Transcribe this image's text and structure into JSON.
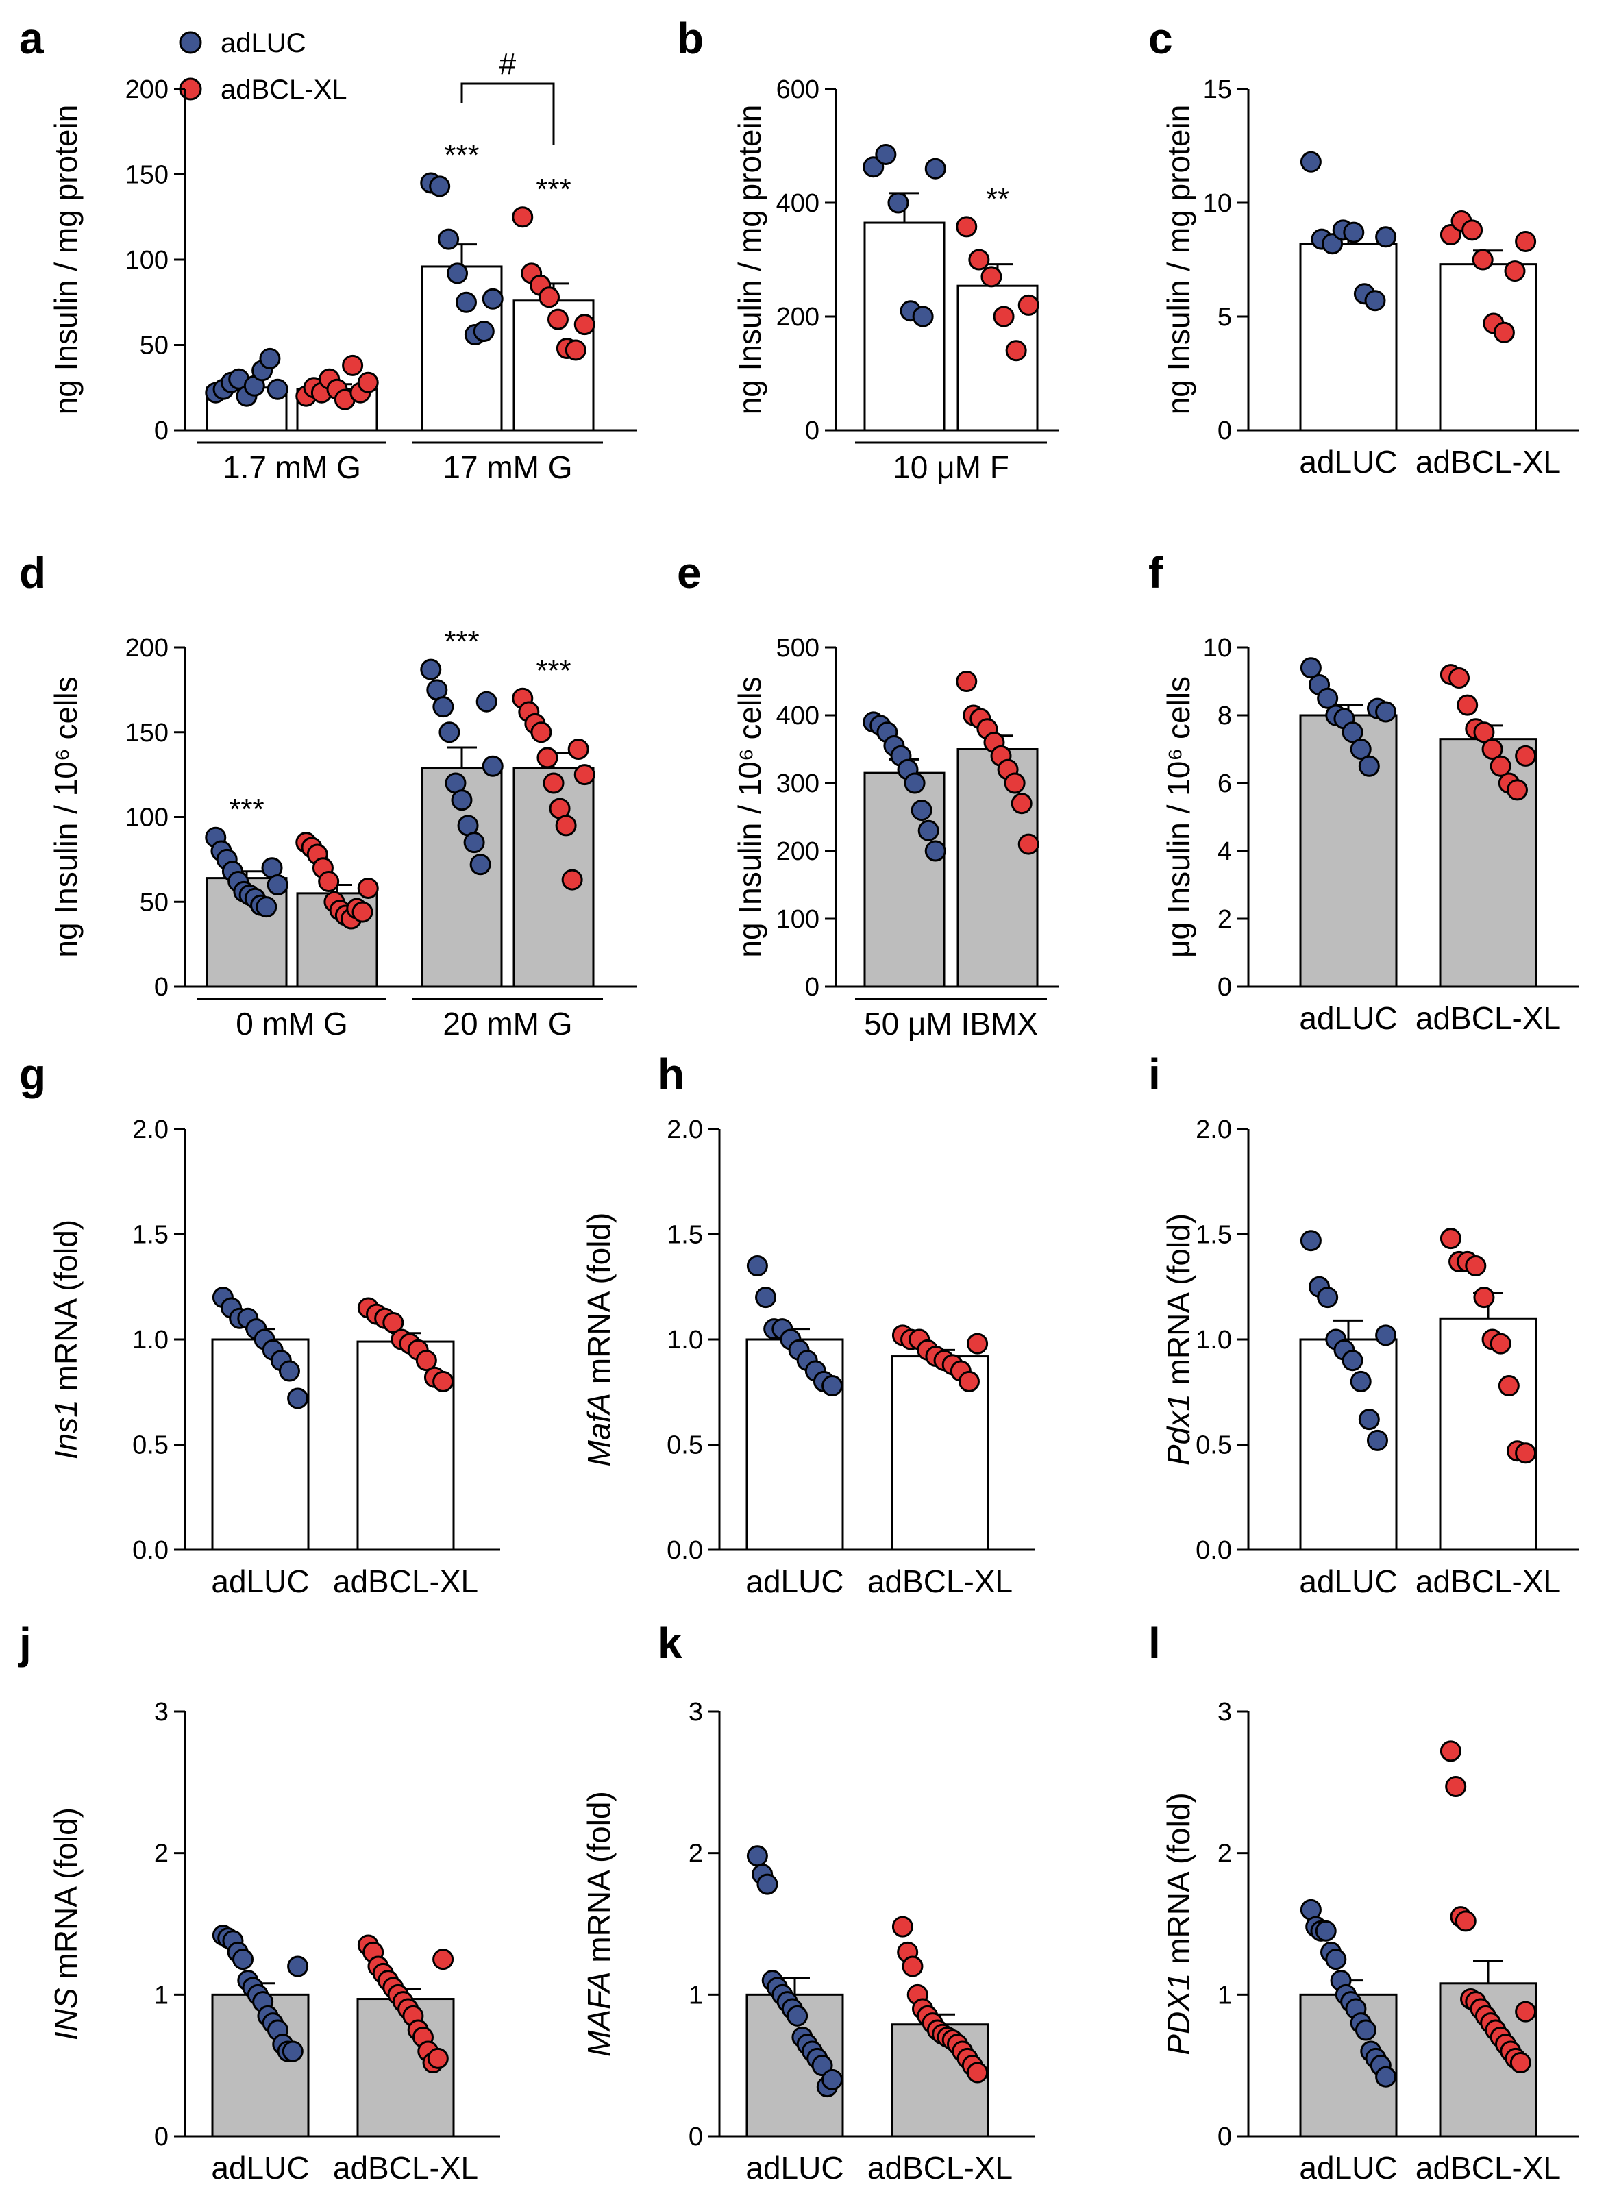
{
  "colors": {
    "adLUC": "#3f5590",
    "adBCL": "#e53a3a",
    "bar_white": "#ffffff",
    "bar_grey": "#bdbdbd"
  },
  "legend": [
    {
      "label": "adLUC",
      "color": "#3f5590"
    },
    {
      "label": "adBCL-XL",
      "color": "#e53a3a"
    }
  ],
  "chart_data": [
    {
      "id": "a",
      "panel_label": "a",
      "type": "bar",
      "bar_fill": "white",
      "ylabel": "ng Insulin / mg protein",
      "ylim": [
        0,
        200
      ],
      "yticks": [
        "0",
        "50",
        "100",
        "150",
        "200"
      ],
      "groups": [
        {
          "label": "1.7 mM G",
          "bars": [
            0,
            1
          ]
        },
        {
          "label": "17 mM G",
          "bars": [
            2,
            3
          ]
        }
      ],
      "bars": [
        {
          "series": "adLUC",
          "mean": 25,
          "sem": 3,
          "points": [
            22,
            24,
            28,
            30,
            20,
            26,
            35,
            42,
            24
          ],
          "sig": ""
        },
        {
          "series": "adBCL-XL",
          "mean": 24,
          "sem": 3,
          "points": [
            20,
            25,
            22,
            30,
            24,
            18,
            38,
            22,
            28
          ],
          "sig": ""
        },
        {
          "series": "adLUC",
          "mean": 96,
          "sem": 13,
          "points": [
            145,
            143,
            112,
            92,
            75,
            56,
            58,
            77
          ],
          "sig": "***"
        },
        {
          "series": "adBCL-XL",
          "mean": 76,
          "sem": 10,
          "points": [
            125,
            92,
            85,
            78,
            65,
            48,
            47,
            62
          ],
          "sig": "***"
        }
      ],
      "bracket": {
        "from": 2,
        "to": 3,
        "label": "#"
      }
    },
    {
      "id": "b",
      "panel_label": "b",
      "type": "bar",
      "bar_fill": "white",
      "ylabel": "ng Insulin / mg protein",
      "ylim": [
        0,
        600
      ],
      "yticks": [
        "0",
        "200",
        "400",
        "600"
      ],
      "groups": [
        {
          "label": "10 μM F",
          "bars": [
            0,
            1
          ]
        }
      ],
      "bars": [
        {
          "series": "adLUC",
          "mean": 365,
          "sem": 52,
          "points": [
            463,
            485,
            400,
            210,
            200,
            460
          ],
          "sig": ""
        },
        {
          "series": "adBCL-XL",
          "mean": 254,
          "sem": 38,
          "points": [
            358,
            300,
            270,
            200,
            140,
            220
          ],
          "sig": "**"
        }
      ]
    },
    {
      "id": "c",
      "panel_label": "c",
      "type": "bar",
      "bar_fill": "white",
      "ylabel": "ng Insulin / mg protein",
      "ylim": [
        0,
        15
      ],
      "yticks": [
        "0",
        "5",
        "10",
        "15"
      ],
      "categories": [
        "adLUC",
        "adBCL-XL"
      ],
      "bars": [
        {
          "series": "adLUC",
          "mean": 8.2,
          "sem": 0.6,
          "points": [
            11.8,
            8.4,
            8.2,
            8.8,
            8.7,
            6.0,
            5.7,
            8.5
          ],
          "sig": ""
        },
        {
          "series": "adBCL-XL",
          "mean": 7.3,
          "sem": 0.6,
          "points": [
            8.6,
            9.2,
            8.8,
            7.5,
            4.7,
            4.3,
            7.0,
            8.3
          ],
          "sig": ""
        }
      ]
    },
    {
      "id": "d",
      "panel_label": "d",
      "type": "bar",
      "bar_fill": "grey",
      "ylabel": "ng Insulin / 10⁶ cells",
      "ylim": [
        0,
        200
      ],
      "yticks": [
        "0",
        "50",
        "100",
        "150",
        "200"
      ],
      "groups": [
        {
          "label": "0 mM G",
          "bars": [
            0,
            1
          ]
        },
        {
          "label": "20 mM G",
          "bars": [
            2,
            3
          ]
        }
      ],
      "bars": [
        {
          "series": "adLUC",
          "mean": 64,
          "sem": 4,
          "points": [
            88,
            80,
            75,
            68,
            62,
            56,
            54,
            52,
            48,
            47,
            70,
            60
          ],
          "sig": "***"
        },
        {
          "series": "adBCL-XL",
          "mean": 55,
          "sem": 5,
          "points": [
            85,
            82,
            78,
            70,
            62,
            50,
            45,
            42,
            40,
            46,
            44,
            58
          ],
          "sig": ""
        },
        {
          "series": "adLUC",
          "mean": 129,
          "sem": 12,
          "points": [
            187,
            175,
            165,
            150,
            120,
            110,
            95,
            85,
            72,
            168,
            130
          ],
          "sig": "***"
        },
        {
          "series": "adBCL-XL",
          "mean": 129,
          "sem": 9,
          "points": [
            170,
            162,
            155,
            150,
            135,
            120,
            105,
            95,
            63,
            140,
            125
          ],
          "sig": "***"
        }
      ]
    },
    {
      "id": "e",
      "panel_label": "e",
      "type": "bar",
      "bar_fill": "grey",
      "ylabel": "ng Insulin / 10⁶ cells",
      "ylim": [
        0,
        500
      ],
      "yticks": [
        "0",
        "100",
        "200",
        "300",
        "400",
        "500"
      ],
      "groups": [
        {
          "label": "50 μM IBMX",
          "bars": [
            0,
            1
          ]
        }
      ],
      "bars": [
        {
          "series": "adLUC",
          "mean": 315,
          "sem": 20,
          "points": [
            390,
            385,
            375,
            355,
            340,
            320,
            300,
            260,
            230,
            200
          ],
          "sig": ""
        },
        {
          "series": "adBCL-XL",
          "mean": 350,
          "sem": 20,
          "points": [
            450,
            400,
            395,
            380,
            360,
            340,
            320,
            300,
            270,
            210
          ],
          "sig": ""
        }
      ]
    },
    {
      "id": "f",
      "panel_label": "f",
      "type": "bar",
      "bar_fill": "grey",
      "ylabel": "μg Insulin / 10⁶ cells",
      "ylim": [
        0,
        10
      ],
      "yticks": [
        "0",
        "2",
        "4",
        "6",
        "8",
        "10"
      ],
      "categories": [
        "adLUC",
        "adBCL-XL"
      ],
      "bars": [
        {
          "series": "adLUC",
          "mean": 8.0,
          "sem": 0.3,
          "points": [
            9.4,
            8.9,
            8.5,
            8.0,
            7.9,
            7.5,
            7.0,
            6.5,
            8.2,
            8.1
          ],
          "sig": ""
        },
        {
          "series": "adBCL-XL",
          "mean": 7.3,
          "sem": 0.4,
          "points": [
            9.2,
            9.1,
            8.3,
            7.6,
            7.5,
            7.0,
            6.5,
            6.0,
            5.8,
            6.8
          ],
          "sig": ""
        }
      ]
    },
    {
      "id": "g",
      "panel_label": "g",
      "type": "bar",
      "bar_fill": "white",
      "ylabel_italic": "Ins1",
      "ylabel_rest": " mRNA (fold)",
      "ylim": [
        0,
        2
      ],
      "yticks": [
        "0.0",
        "0.5",
        "1.0",
        "1.5",
        "2.0"
      ],
      "categories": [
        "adLUC",
        "adBCL-XL"
      ],
      "bars": [
        {
          "series": "adLUC",
          "mean": 1.0,
          "sem": 0.05,
          "points": [
            1.2,
            1.15,
            1.1,
            1.1,
            1.05,
            1.0,
            0.95,
            0.9,
            0.85,
            0.72
          ],
          "sig": ""
        },
        {
          "series": "adBCL-XL",
          "mean": 0.99,
          "sem": 0.04,
          "points": [
            1.15,
            1.12,
            1.1,
            1.08,
            1.0,
            0.98,
            0.95,
            0.9,
            0.82,
            0.8
          ],
          "sig": ""
        }
      ]
    },
    {
      "id": "h",
      "panel_label": "h",
      "type": "bar",
      "bar_fill": "white",
      "ylabel_italic": "MafA",
      "ylabel_rest": " mRNA (fold)",
      "ylim": [
        0,
        2
      ],
      "yticks": [
        "0.0",
        "0.5",
        "1.0",
        "1.5",
        "2.0"
      ],
      "categories": [
        "adLUC",
        "adBCL-XL"
      ],
      "bars": [
        {
          "series": "adLUC",
          "mean": 1.0,
          "sem": 0.05,
          "points": [
            1.35,
            1.2,
            1.05,
            1.05,
            1.0,
            0.95,
            0.9,
            0.85,
            0.8,
            0.78
          ],
          "sig": ""
        },
        {
          "series": "adBCL-XL",
          "mean": 0.92,
          "sem": 0.03,
          "points": [
            1.02,
            1.0,
            1.0,
            0.95,
            0.92,
            0.9,
            0.88,
            0.85,
            0.8,
            0.98
          ],
          "sig": ""
        }
      ]
    },
    {
      "id": "i",
      "panel_label": "i",
      "type": "bar",
      "bar_fill": "white",
      "ylabel_italic": "Pdx1",
      "ylabel_rest": " mRNA (fold)",
      "ylim": [
        0,
        2
      ],
      "yticks": [
        "0.0",
        "0.5",
        "1.0",
        "1.5",
        "2.0"
      ],
      "categories": [
        "adLUC",
        "adBCL-XL"
      ],
      "bars": [
        {
          "series": "adLUC",
          "mean": 1.0,
          "sem": 0.09,
          "points": [
            1.47,
            1.25,
            1.2,
            1.0,
            0.95,
            0.9,
            0.8,
            0.62,
            0.52,
            1.02
          ],
          "sig": ""
        },
        {
          "series": "adBCL-XL",
          "mean": 1.1,
          "sem": 0.12,
          "points": [
            1.48,
            1.37,
            1.37,
            1.35,
            1.2,
            1.0,
            0.98,
            0.78,
            0.47,
            0.46
          ],
          "sig": ""
        }
      ]
    },
    {
      "id": "j",
      "panel_label": "j",
      "type": "bar",
      "bar_fill": "grey",
      "ylabel_italic": "INS",
      "ylabel_rest": " mRNA (fold)",
      "ylim": [
        0,
        3
      ],
      "yticks": [
        "0",
        "1",
        "2",
        "3"
      ],
      "categories": [
        "adLUC",
        "adBCL-XL"
      ],
      "bars": [
        {
          "series": "adLUC",
          "mean": 1.0,
          "sem": 0.08,
          "points": [
            1.42,
            1.4,
            1.38,
            1.3,
            1.25,
            1.1,
            1.05,
            1.0,
            0.95,
            0.85,
            0.8,
            0.75,
            0.65,
            0.6,
            0.6,
            1.2
          ],
          "sig": ""
        },
        {
          "series": "adBCL-XL",
          "mean": 0.97,
          "sem": 0.07,
          "points": [
            1.35,
            1.3,
            1.2,
            1.15,
            1.1,
            1.05,
            1.0,
            0.95,
            0.9,
            0.85,
            0.75,
            0.7,
            0.6,
            0.52,
            0.55,
            1.25
          ],
          "sig": ""
        }
      ]
    },
    {
      "id": "k",
      "panel_label": "k",
      "type": "bar",
      "bar_fill": "grey",
      "ylabel_italic": "MAFA",
      "ylabel_rest": " mRNA (fold)",
      "ylim": [
        0,
        3
      ],
      "yticks": [
        "0",
        "1",
        "2",
        "3"
      ],
      "categories": [
        "adLUC",
        "adBCL-XL"
      ],
      "bars": [
        {
          "series": "adLUC",
          "mean": 1.0,
          "sem": 0.12,
          "points": [
            1.98,
            1.85,
            1.78,
            1.1,
            1.05,
            1.0,
            0.95,
            0.9,
            0.85,
            0.7,
            0.65,
            0.6,
            0.55,
            0.5,
            0.35,
            0.4
          ],
          "sig": ""
        },
        {
          "series": "adBCL-XL",
          "mean": 0.79,
          "sem": 0.07,
          "points": [
            1.48,
            1.3,
            1.2,
            1.0,
            0.9,
            0.85,
            0.8,
            0.75,
            0.72,
            0.7,
            0.68,
            0.65,
            0.6,
            0.55,
            0.5,
            0.45
          ],
          "sig": ""
        }
      ]
    },
    {
      "id": "l",
      "panel_label": "l",
      "type": "bar",
      "bar_fill": "grey",
      "ylabel_italic": "PDX1",
      "ylabel_rest": " mRNA (fold)",
      "ylim": [
        0,
        3
      ],
      "yticks": [
        "0",
        "1",
        "2",
        "3"
      ],
      "categories": [
        "adLUC",
        "adBCL-XL"
      ],
      "bars": [
        {
          "series": "adLUC",
          "mean": 1.0,
          "sem": 0.1,
          "points": [
            1.6,
            1.48,
            1.45,
            1.45,
            1.3,
            1.25,
            1.1,
            1.0,
            0.95,
            0.9,
            0.8,
            0.75,
            0.6,
            0.55,
            0.5,
            0.42
          ],
          "sig": ""
        },
        {
          "series": "adBCL-XL",
          "mean": 1.08,
          "sem": 0.16,
          "points": [
            2.72,
            2.47,
            1.55,
            1.52,
            0.97,
            0.95,
            0.9,
            0.85,
            0.8,
            0.75,
            0.7,
            0.65,
            0.6,
            0.55,
            0.52,
            0.88
          ],
          "sig": ""
        }
      ]
    }
  ]
}
